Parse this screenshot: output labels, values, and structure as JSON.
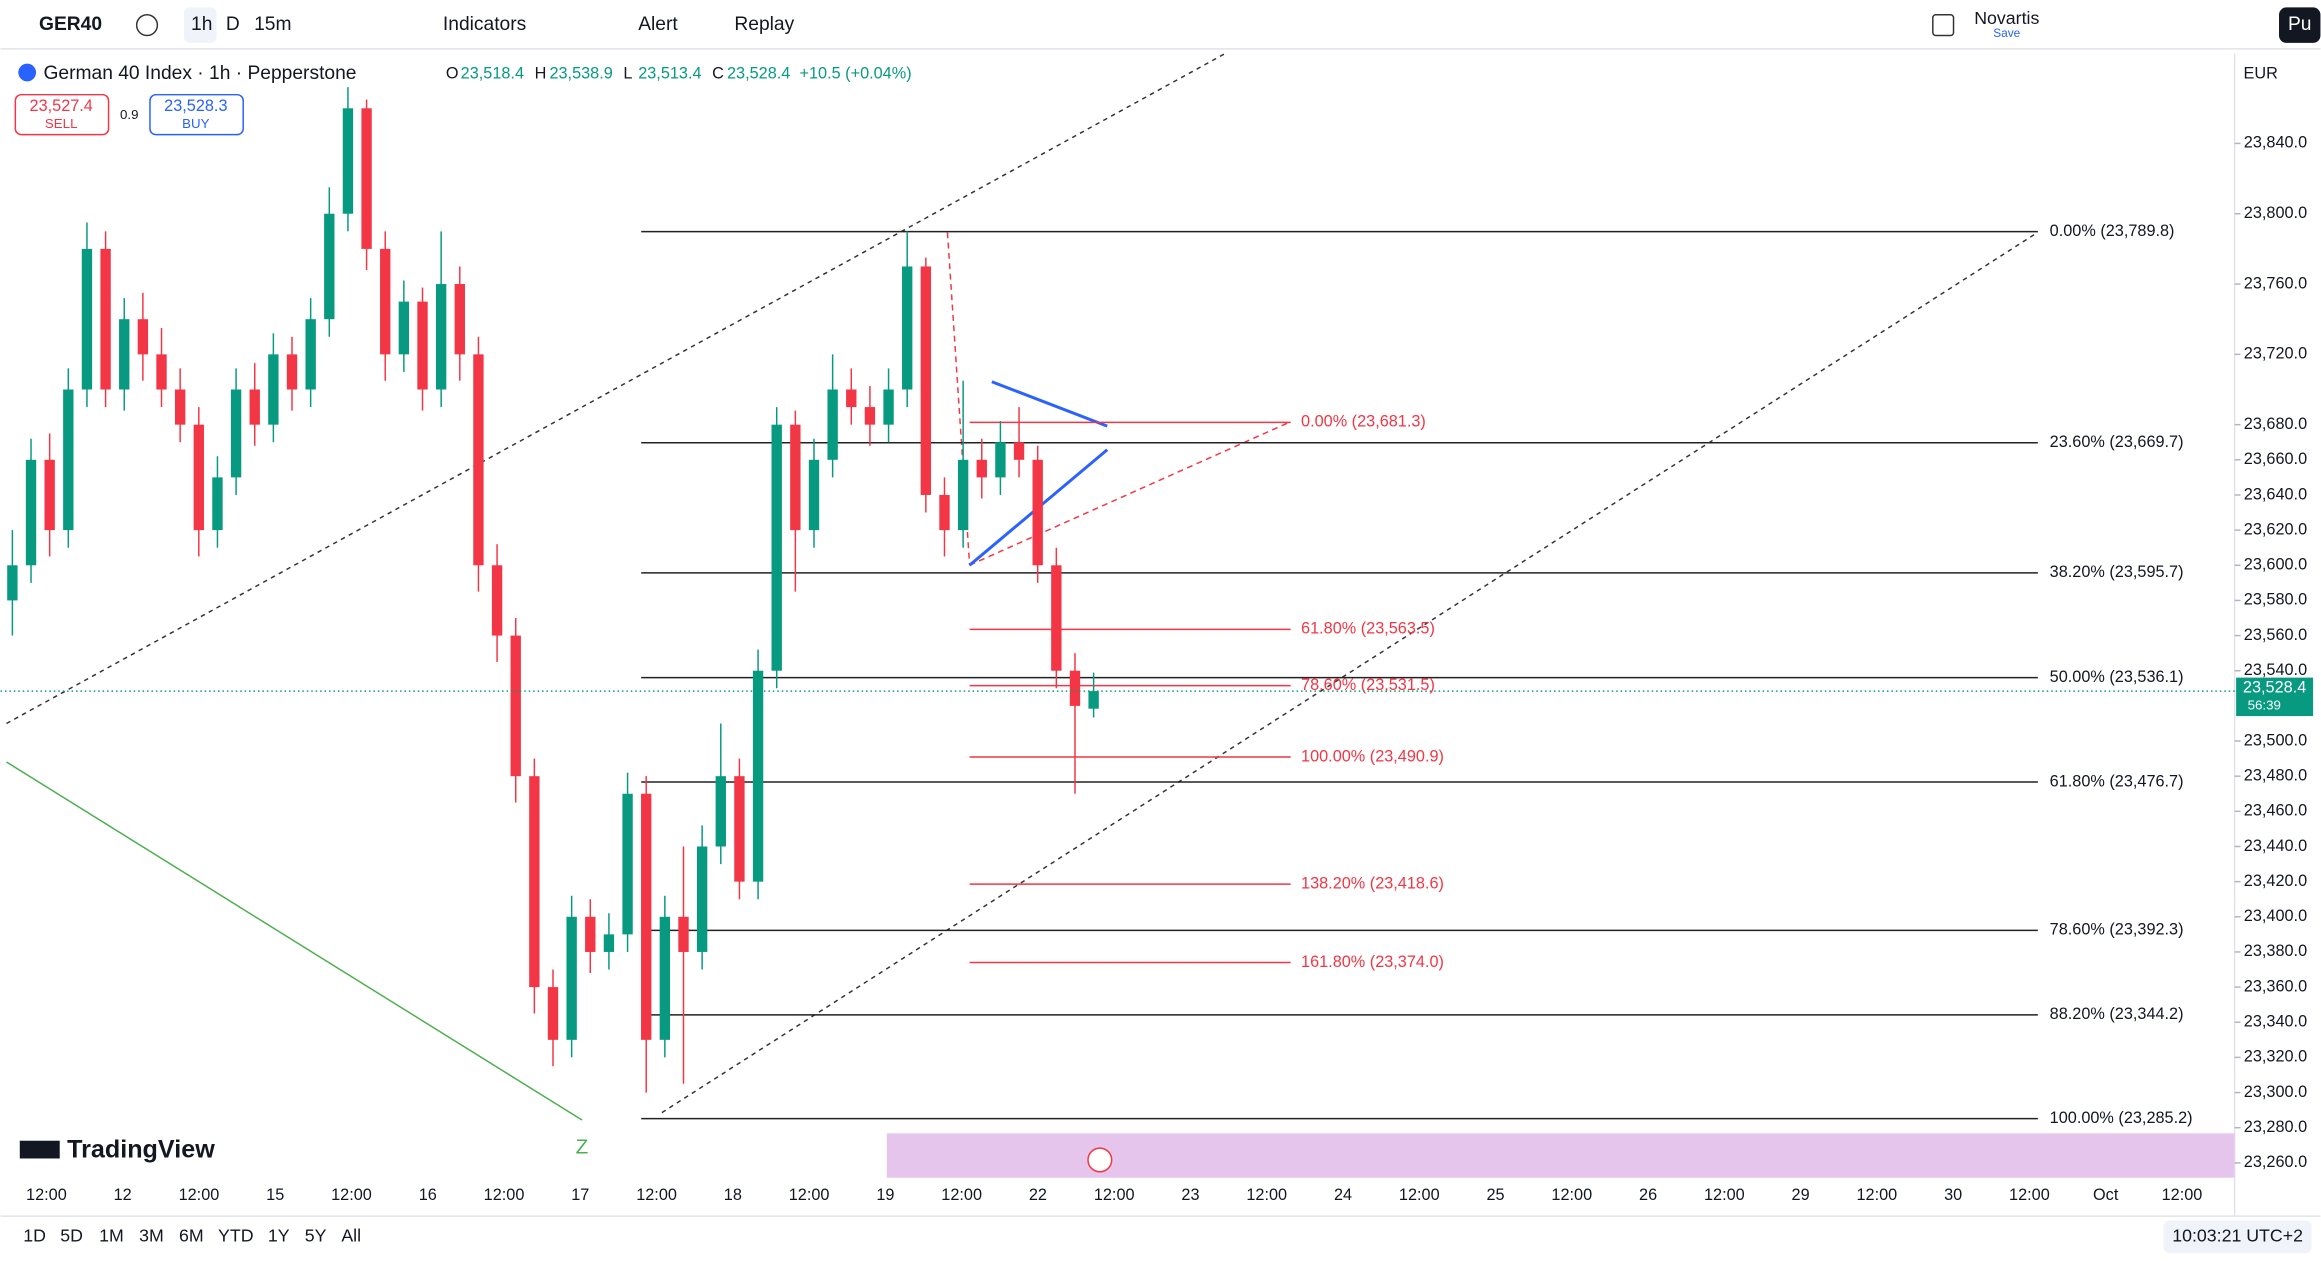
{
  "toolbar": {
    "symbol": "GER40",
    "intervals": [
      "1h",
      "D",
      "15m"
    ],
    "buttons": [
      "Indicators",
      "Alert",
      "Replay"
    ],
    "layout_name": "Novartis",
    "layout_status": "Save",
    "publish": "Pu"
  },
  "legend": {
    "title": "German 40 Index · 1h · Pepperstone",
    "ohlc": [
      {
        "key": "O",
        "value": "23,518.4"
      },
      {
        "key": "H",
        "value": "23,538.9"
      },
      {
        "key": "L",
        "value": "23,513.4"
      },
      {
        "key": "C",
        "value": "23,528.4"
      }
    ],
    "change": "+10.5 (+0.04%)"
  },
  "trade": {
    "sell_price": "23,527.4",
    "sell": "SELL",
    "spread": "0.9",
    "buy_price": "23,528.3",
    "buy": "BUY"
  },
  "chart_data": {
    "type": "candlestick",
    "currency": "EUR",
    "ylim": [
      23252.4,
      23891.3
    ],
    "yticks": [
      {
        "value": 23260,
        "label": "23,260.0"
      },
      {
        "value": 23280,
        "label": "23,280.0"
      },
      {
        "value": 23300,
        "label": "23,300.0"
      },
      {
        "value": 23320,
        "label": "23,320.0"
      },
      {
        "value": 23340,
        "label": "23,340.0"
      },
      {
        "value": 23360,
        "label": "23,360.0"
      },
      {
        "value": 23380,
        "label": "23,380.0"
      },
      {
        "value": 23400,
        "label": "23,400.0"
      },
      {
        "value": 23420,
        "label": "23,420.0"
      },
      {
        "value": 23440,
        "label": "23,440.0"
      },
      {
        "value": 23460,
        "label": "23,460.0"
      },
      {
        "value": 23480,
        "label": "23,480.0"
      },
      {
        "value": 23500,
        "label": "23,500.0"
      },
      {
        "value": 23540,
        "label": "23,540.0"
      },
      {
        "value": 23560,
        "label": "23,560.0"
      },
      {
        "value": 23580,
        "label": "23,580.0"
      },
      {
        "value": 23600,
        "label": "23,600.0"
      },
      {
        "value": 23620,
        "label": "23,620.0"
      },
      {
        "value": 23640,
        "label": "23,640.0"
      },
      {
        "value": 23660,
        "label": "23,660.0"
      },
      {
        "value": 23680,
        "label": "23,680.0"
      },
      {
        "value": 23720,
        "label": "23,720.0"
      },
      {
        "value": 23760,
        "label": "23,760.0"
      },
      {
        "value": 23800,
        "label": "23,800.0"
      },
      {
        "value": 23840,
        "label": "23,840.0"
      }
    ],
    "x_labels": [
      "12:00",
      "12",
      "12:00",
      "15",
      "12:00",
      "16",
      "12:00",
      "17",
      "12:00",
      "18",
      "12:00",
      "19",
      "12:00",
      "22",
      "12:00",
      "23",
      "12:00",
      "24",
      "12:00",
      "25",
      "12:00",
      "26",
      "12:00",
      "29",
      "12:00",
      "30",
      "12:00",
      "Oct",
      "12:00"
    ],
    "candles": [
      [
        23580,
        23620,
        23560,
        23600
      ],
      [
        23600,
        23672,
        23590,
        23660
      ],
      [
        23660,
        23675,
        23605,
        23620
      ],
      [
        23620,
        23712,
        23610,
        23700
      ],
      [
        23700,
        23795,
        23690,
        23780
      ],
      [
        23780,
        23790,
        23690,
        23700
      ],
      [
        23700,
        23752,
        23688,
        23740
      ],
      [
        23740,
        23755,
        23705,
        23720
      ],
      [
        23720,
        23735,
        23690,
        23700
      ],
      [
        23700,
        23712,
        23670,
        23680
      ],
      [
        23680,
        23690,
        23605,
        23620
      ],
      [
        23620,
        23662,
        23610,
        23650
      ],
      [
        23650,
        23712,
        23640,
        23700
      ],
      [
        23700,
        23715,
        23668,
        23680
      ],
      [
        23680,
        23732,
        23670,
        23720
      ],
      [
        23720,
        23730,
        23688,
        23700
      ],
      [
        23700,
        23752,
        23690,
        23740
      ],
      [
        23740,
        23815,
        23730,
        23800
      ],
      [
        23800,
        23872,
        23790,
        23860
      ],
      [
        23860,
        23865,
        23768,
        23780
      ],
      [
        23780,
        23790,
        23705,
        23720
      ],
      [
        23720,
        23762,
        23710,
        23750
      ],
      [
        23750,
        23758,
        23688,
        23700
      ],
      [
        23700,
        23790,
        23690,
        23760
      ],
      [
        23760,
        23770,
        23705,
        23720
      ],
      [
        23720,
        23730,
        23585,
        23600
      ],
      [
        23600,
        23612,
        23545,
        23560
      ],
      [
        23560,
        23570,
        23465,
        23480
      ],
      [
        23480,
        23490,
        23345,
        23360
      ],
      [
        23360,
        23370,
        23315,
        23330
      ],
      [
        23330,
        23412,
        23320,
        23400
      ],
      [
        23400,
        23410,
        23368,
        23380
      ],
      [
        23380,
        23402,
        23370,
        23390
      ],
      [
        23390,
        23482,
        23380,
        23470
      ],
      [
        23470,
        23480,
        23300,
        23330
      ],
      [
        23330,
        23412,
        23320,
        23400
      ],
      [
        23400,
        23440,
        23305,
        23380
      ],
      [
        23380,
        23452,
        23370,
        23440
      ],
      [
        23440,
        23510,
        23430,
        23480
      ],
      [
        23480,
        23490,
        23410,
        23420
      ],
      [
        23420,
        23552,
        23410,
        23540
      ],
      [
        23540,
        23690,
        23530,
        23680
      ],
      [
        23680,
        23688,
        23585,
        23620
      ],
      [
        23620,
        23672,
        23610,
        23660
      ],
      [
        23660,
        23720,
        23650,
        23700
      ],
      [
        23700,
        23712,
        23680,
        23690
      ],
      [
        23690,
        23702,
        23668,
        23680
      ],
      [
        23680,
        23712,
        23670,
        23700
      ],
      [
        23700,
        23790,
        23690,
        23770
      ],
      [
        23770,
        23775,
        23630,
        23640
      ],
      [
        23640,
        23650,
        23605,
        23620
      ],
      [
        23620,
        23705,
        23610,
        23660
      ],
      [
        23660,
        23672,
        23638,
        23650
      ],
      [
        23650,
        23682,
        23640,
        23670
      ],
      [
        23670,
        23690,
        23650,
        23660
      ],
      [
        23660,
        23668,
        23590,
        23600
      ],
      [
        23600,
        23610,
        23530,
        23540
      ],
      [
        23540,
        23550,
        23470,
        23520
      ],
      [
        23518.4,
        23538.9,
        23513.4,
        23528.4
      ]
    ],
    "last_price": {
      "value": 23528.4,
      "label": "23,528.4",
      "countdown": "56:39"
    },
    "fib_main": [
      {
        "value": 23789.8,
        "label": "0.00% (23,789.8)"
      },
      {
        "value": 23669.7,
        "label": "23.60% (23,669.7)"
      },
      {
        "value": 23595.7,
        "label": "38.20% (23,595.7)"
      },
      {
        "value": 23536.1,
        "label": "50.00% (23,536.1)"
      },
      {
        "value": 23476.7,
        "label": "61.80% (23,476.7)"
      },
      {
        "value": 23392.3,
        "label": "78.60% (23,392.3)"
      },
      {
        "value": 23344.2,
        "label": "88.20% (23,344.2)"
      },
      {
        "value": 23285.2,
        "label": "100.00% (23,285.2)"
      }
    ],
    "fib_small": [
      {
        "value": 23681.3,
        "label": "0.00% (23,681.3)"
      },
      {
        "value": 23563.5,
        "label": "61.80% (23,563.5)"
      },
      {
        "value": 23531.5,
        "label": "78.60% (23,531.5)"
      },
      {
        "value": 23490.9,
        "label": "100.00% (23,490.9)"
      },
      {
        "value": 23418.6,
        "label": "138.20% (23,418.6)"
      },
      {
        "value": 23374.0,
        "label": "161.80% (23,374.0)"
      }
    ],
    "marker": "Z",
    "colors": {
      "up": "#089981",
      "down": "#f23645",
      "fib_main": "#222222",
      "fib_small": "#f23645"
    }
  },
  "footer": {
    "ranges": [
      "1D",
      "5D",
      "1M",
      "3M",
      "6M",
      "YTD",
      "1Y",
      "5Y",
      "All"
    ],
    "clock": "10:03:21 UTC+2"
  },
  "branding": "TradingView"
}
